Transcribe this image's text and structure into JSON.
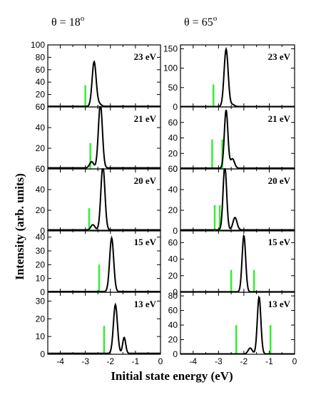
{
  "figure": {
    "xlabel": "Initial state energy (eV)",
    "ylabel": "Intensity (arb. units)",
    "columns": [
      {
        "title_base": "θ = 18",
        "title_sup": "o"
      },
      {
        "title_base": "θ = 65",
        "title_sup": "o"
      }
    ]
  },
  "colors": {
    "curve": "#000000",
    "marker": "#33ee33"
  },
  "chart_data": [
    {
      "type": "line",
      "column": 0,
      "label": "23 eV",
      "xlim": [
        -4.5,
        0
      ],
      "ylim": [
        0,
        100
      ],
      "yticks": [
        0,
        20,
        40,
        60,
        80,
        100
      ],
      "xticks": [
        -4,
        -3,
        -2,
        -1,
        0
      ],
      "xtick_labels_shown": false,
      "series": [
        {
          "peaks": [
            {
              "x": -2.65,
              "h": 72,
              "w": 0.08
            },
            {
              "x": -2.45,
              "h": 4,
              "w": 0.08
            }
          ],
          "baseline": 1
        }
      ],
      "markers": [
        {
          "x": -3.0,
          "h": 35
        }
      ]
    },
    {
      "type": "line",
      "column": 0,
      "label": "21 eV",
      "xlim": [
        -4.5,
        0
      ],
      "ylim": [
        0,
        60
      ],
      "yticks": [
        0,
        20,
        40,
        60
      ],
      "xticks": [
        -4,
        -3,
        -2,
        -1,
        0
      ],
      "xtick_labels_shown": false,
      "series": [
        {
          "peaks": [
            {
              "x": -2.4,
              "h": 62,
              "w": 0.08
            },
            {
              "x": -2.75,
              "h": 6,
              "w": 0.08
            }
          ],
          "baseline": 1
        }
      ],
      "markers": [
        {
          "x": -2.8,
          "h": 25
        }
      ]
    },
    {
      "type": "line",
      "column": 0,
      "label": "20 eV",
      "xlim": [
        -4.5,
        0
      ],
      "ylim": [
        0,
        60
      ],
      "yticks": [
        0,
        20,
        40,
        60
      ],
      "xticks": [
        -4,
        -3,
        -2,
        -1,
        0
      ],
      "xtick_labels_shown": false,
      "series": [
        {
          "peaks": [
            {
              "x": -2.3,
              "h": 62,
              "w": 0.08
            },
            {
              "x": -2.7,
              "h": 5,
              "w": 0.08
            }
          ],
          "baseline": 1
        }
      ],
      "markers": [
        {
          "x": -2.85,
          "h": 22
        }
      ]
    },
    {
      "type": "line",
      "column": 0,
      "label": "15 eV",
      "xlim": [
        -4.5,
        0
      ],
      "ylim": [
        0,
        45
      ],
      "yticks": [
        0,
        10,
        20,
        30,
        40
      ],
      "xticks": [
        -4,
        -3,
        -2,
        -1,
        0
      ],
      "xtick_labels_shown": false,
      "series": [
        {
          "peaks": [
            {
              "x": -1.95,
              "h": 39,
              "w": 0.08
            }
          ],
          "baseline": 0.5
        }
      ],
      "markers": [
        {
          "x": -2.45,
          "h": 20
        }
      ]
    },
    {
      "type": "line",
      "column": 0,
      "label": "13 eV",
      "xlim": [
        -4.5,
        0
      ],
      "ylim": [
        0,
        35
      ],
      "yticks": [
        0,
        10,
        20,
        30
      ],
      "xticks": [
        -4,
        -3,
        -2,
        -1,
        0
      ],
      "xtick_labels": [
        "-4",
        "-3",
        "-2",
        "-1",
        "0"
      ],
      "series": [
        {
          "peaks": [
            {
              "x": -1.8,
              "h": 27.5,
              "w": 0.08
            },
            {
              "x": -1.45,
              "h": 9,
              "w": 0.06
            }
          ],
          "baseline": 0.5
        }
      ],
      "markers": [
        {
          "x": -2.25,
          "h": 16
        }
      ]
    },
    {
      "type": "line",
      "column": 1,
      "label": "23 eV",
      "xlim": [
        -4.5,
        0
      ],
      "ylim": [
        0,
        160
      ],
      "yticks": [
        0,
        50,
        100,
        150
      ],
      "xticks": [
        -4,
        -3,
        -2,
        -1,
        0
      ],
      "xtick_labels_shown": false,
      "series": [
        {
          "peaks": [
            {
              "x": -2.7,
              "h": 148,
              "w": 0.08
            },
            {
              "x": -2.45,
              "h": 5,
              "w": 0.08
            }
          ],
          "baseline": 1
        }
      ],
      "markers": [
        {
          "x": -3.2,
          "h": 58
        }
      ]
    },
    {
      "type": "line",
      "column": 1,
      "label": "21 eV",
      "xlim": [
        -4.5,
        0
      ],
      "ylim": [
        0,
        80
      ],
      "yticks": [
        0,
        20,
        40,
        60
      ],
      "xticks": [
        -4,
        -3,
        -2,
        -1,
        0
      ],
      "xtick_labels_shown": false,
      "series": [
        {
          "peaks": [
            {
              "x": -2.7,
              "h": 75,
              "w": 0.07
            },
            {
              "x": -2.45,
              "h": 12,
              "w": 0.08
            }
          ],
          "baseline": 1
        }
      ],
      "markers": [
        {
          "x": -3.25,
          "h": 38
        },
        {
          "x": -2.85,
          "h": 38
        }
      ]
    },
    {
      "type": "line",
      "column": 1,
      "label": "20 eV",
      "xlim": [
        -4.5,
        0
      ],
      "ylim": [
        0,
        60
      ],
      "yticks": [
        0,
        20,
        40,
        60
      ],
      "xticks": [
        -4,
        -3,
        -2,
        -1,
        0
      ],
      "xtick_labels_shown": false,
      "series": [
        {
          "peaks": [
            {
              "x": -2.75,
              "h": 62,
              "w": 0.07
            },
            {
              "x": -2.35,
              "h": 12,
              "w": 0.08
            }
          ],
          "baseline": 1
        }
      ],
      "markers": [
        {
          "x": -3.15,
          "h": 25
        },
        {
          "x": -2.95,
          "h": 25
        }
      ]
    },
    {
      "type": "line",
      "column": 1,
      "label": "15 eV",
      "xlim": [
        -4.5,
        0
      ],
      "ylim": [
        0,
        75
      ],
      "yticks": [
        0,
        20,
        40,
        60
      ],
      "xticks": [
        -4,
        -3,
        -2,
        -1,
        0
      ],
      "xtick_labels_shown": false,
      "series": [
        {
          "peaks": [
            {
              "x": -2.0,
              "h": 68,
              "w": 0.07
            }
          ],
          "baseline": 0.5
        }
      ],
      "markers": [
        {
          "x": -2.5,
          "h": 27
        },
        {
          "x": -1.6,
          "h": 27
        }
      ]
    },
    {
      "type": "line",
      "column": 1,
      "label": "13 eV",
      "xlim": [
        -4.5,
        0
      ],
      "ylim": [
        0,
        85
      ],
      "yticks": [
        0,
        20,
        40,
        60,
        80
      ],
      "xticks": [
        -4,
        -3,
        -2,
        -1,
        0
      ],
      "xtick_labels": [
        "-4",
        "-3",
        "-2",
        "-1",
        "0"
      ],
      "series": [
        {
          "peaks": [
            {
              "x": -1.4,
              "h": 78,
              "w": 0.07
            },
            {
              "x": -1.75,
              "h": 8,
              "w": 0.08
            }
          ],
          "baseline": 0.5
        }
      ],
      "markers": [
        {
          "x": -2.3,
          "h": 40
        },
        {
          "x": -0.95,
          "h": 40
        }
      ]
    }
  ]
}
